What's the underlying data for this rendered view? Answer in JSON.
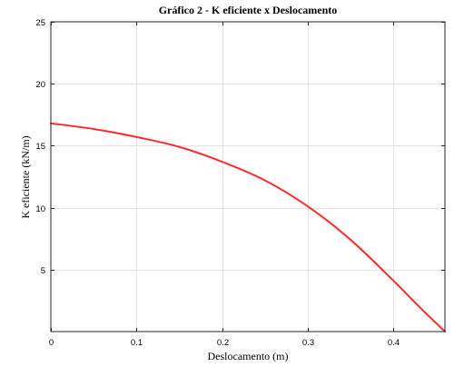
{
  "chart_data": {
    "type": "line",
    "title": "Gráfico 2 - K eficiente x Deslocamento",
    "xlabel": "Deslocamento (m)",
    "ylabel": "K eficiente (kN/m)",
    "xlim": [
      0,
      0.46
    ],
    "ylim": [
      0,
      25
    ],
    "xticks": [
      0,
      0.1,
      0.2,
      0.3,
      0.4
    ],
    "xtick_labels": [
      "0",
      "0.1",
      "0.2",
      "0.3",
      "0.4"
    ],
    "yticks": [
      5,
      10,
      15,
      20,
      25
    ],
    "ytick_labels": [
      "5",
      "10",
      "15",
      "20",
      "25"
    ],
    "grid": true,
    "series": [
      {
        "color": "#ff2a2a",
        "x": [
          0,
          0.05,
          0.1,
          0.15,
          0.2,
          0.25,
          0.3,
          0.35,
          0.4,
          0.43,
          0.46
        ],
        "y": [
          16.8,
          16.35,
          15.7,
          14.9,
          13.7,
          12.2,
          10.1,
          7.4,
          4.1,
          2.0,
          0.0
        ]
      }
    ]
  }
}
